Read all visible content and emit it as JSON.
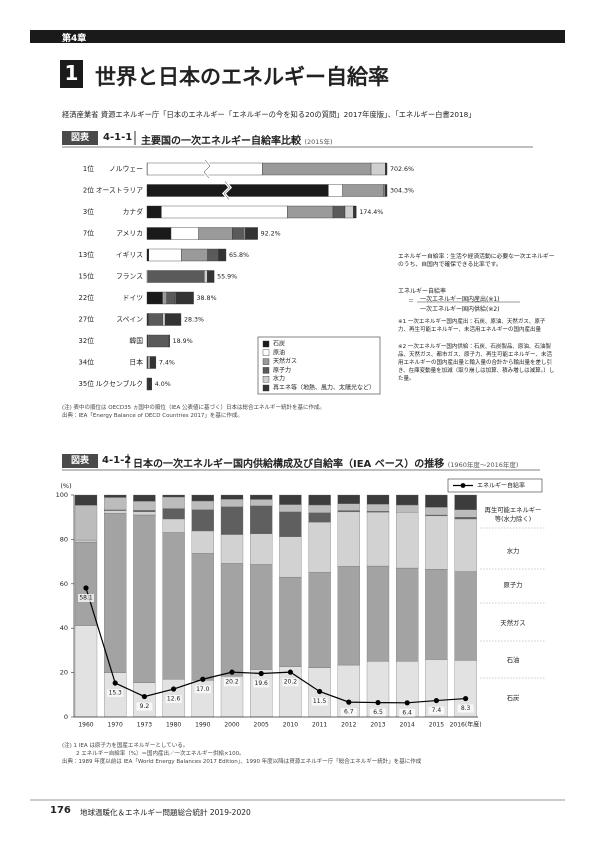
{
  "chapter": "第4章",
  "section_number": "1",
  "title": "世界と日本のエネルギー自給率",
  "source": "経済産業省 資源エネルギー庁「日本のエネルギー「エネルギーの今を知る20の質問」2017年度版」、「エネルギー白書2018」",
  "definition": {
    "intro": "エネルギー自給率：生活や経済活動に必要な一次エネルギーのうち、自国内で確保できる比率です。",
    "term": "エネルギー自給率",
    "equals": "＝",
    "numerator": "一次エネルギー国内産出(※1)",
    "denominator": "一次エネルギー国内供給(※2)",
    "notes": [
      "※1 一次エネルギー国内産出：石炭、原油、天然ガス、原子力、再生可能エネルギー、未活用エネルギーの国内産出量",
      "※2 一次エネルギー国内供給：石炭、石炭製品、原油、石油製品、天然ガス、都市ガス、原子力、再生可能エネルギー、未活用エネルギーの国内産出量と輸入量の合計から輸出量を差し引き、在庫変動量を加減（取り崩しは加算、積み増しは減算。）した量。"
    ]
  },
  "footer": {
    "page": "176",
    "text": "地球温暖化＆エネルギー問題総合統計 2019-2020"
  },
  "chart_data": [
    {
      "type": "bar",
      "orientation": "horizontal",
      "stacked": true,
      "label": "図表",
      "number": "4-1-1",
      "title": "主要国の一次エネルギー自給率比較",
      "subtitle": "(2015年)",
      "ranks": [
        "1位",
        "2位",
        "3位",
        "7位",
        "13位",
        "15位",
        "22位",
        "27位",
        "32位",
        "34位",
        "35位"
      ],
      "categories": [
        "ノルウェー",
        "オーストラリア",
        "カナダ",
        "アメリカ",
        "イギリス",
        "フランス",
        "ドイツ",
        "スペイン",
        "韓国",
        "日本",
        "ルクセンブルク"
      ],
      "values": [
        702.6,
        304.3,
        174.4,
        92.2,
        65.8,
        55.9,
        38.8,
        28.3,
        18.9,
        7.4,
        4.0
      ],
      "value_labels": [
        "702.6%",
        "304.3%",
        "174.4%",
        "92.2%",
        "65.8%",
        "55.9%",
        "38.8%",
        "28.3%",
        "18.9%",
        "7.4%",
        "4.0%"
      ],
      "series": [
        {
          "name": "石炭",
          "color": "#1a1a1a",
          "values": [
            0.9,
            230,
            12,
            20,
            1.5,
            0,
            13,
            0.8,
            0.6,
            0,
            0
          ]
        },
        {
          "name": "原油",
          "color": "#ffffff",
          "values": [
            337,
            18,
            105,
            23,
            27,
            0.7,
            1,
            0.3,
            0.7,
            0.1,
            0
          ]
        },
        {
          "name": "天然ガス",
          "color": "#9a9a9a",
          "values": [
            318,
            52,
            38,
            28,
            22,
            0,
            2.4,
            0,
            0.2,
            0.4,
            0
          ]
        },
        {
          "name": "原子力",
          "color": "#5a5a5a",
          "values": [
            0,
            0,
            10,
            10,
            9,
            47,
            7,
            12,
            16.8,
            0.4,
            0
          ]
        },
        {
          "name": "水力",
          "color": "#cfcfcf",
          "values": [
            42,
            1.5,
            7,
            1,
            0.3,
            2.6,
            0.7,
            2,
            0.2,
            1.6,
            0.1
          ]
        },
        {
          "name": "再エネ等（地熱、風力、太陽光など）",
          "color": "#333333",
          "values": [
            4.7,
            2.8,
            2.4,
            10.2,
            6,
            5.6,
            14.7,
            13.2,
            0.4,
            4.9,
            3.9
          ]
        }
      ],
      "notes": [
        "(注) 表中の順位は OECD35 ヵ国中の順位（IEA 公表値に基づく）日本は総合エネルギー統計を基に作成。",
        "出典：IEA「Energy Balance of OECD Countries 2017」を基に作成。"
      ]
    },
    {
      "type": "bar",
      "stacked": true,
      "label": "図表",
      "number": "4-1-2",
      "title": "日本の一次エネルギー国内供給構成及び自給率（IEA ベース）の推移",
      "subtitle": "(1960年度～2016年度)",
      "y_label": "(%)",
      "categories": [
        "1960",
        "1970",
        "1973",
        "1980",
        "1990",
        "2000",
        "2005",
        "2010",
        "2011",
        "2012",
        "2013",
        "2014",
        "2015",
        "2016(年度)"
      ],
      "ylim": [
        0,
        100
      ],
      "yticks": [
        0,
        20,
        40,
        60,
        80,
        100
      ],
      "series": [
        {
          "name": "石炭",
          "color": "#e2e2e2",
          "values": [
            41.2,
            19.9,
            15.5,
            17.0,
            16.6,
            18.4,
            21.4,
            22.7,
            22.2,
            23.4,
            25.1,
            25.1,
            25.9,
            25.5
          ]
        },
        {
          "name": "石油",
          "color": "#a3a3a3",
          "values": [
            37.6,
            71.9,
            75.5,
            66.1,
            57.1,
            50.8,
            47.3,
            40.3,
            43.0,
            44.5,
            42.9,
            42.0,
            40.7,
            40.0
          ]
        },
        {
          "name": "天然ガス",
          "color": "#d2d2d2",
          "values": [
            0.9,
            1.2,
            1.5,
            6.1,
            10.1,
            13.0,
            13.8,
            18.2,
            22.6,
            24.5,
            24.3,
            25.1,
            24.0,
            23.7
          ]
        },
        {
          "name": "原子力",
          "color": "#5f5f5f",
          "values": [
            0,
            0.3,
            0.6,
            4.7,
            9.6,
            12.5,
            12.6,
            11.2,
            4.2,
            0.6,
            0.4,
            0,
            0.4,
            0.8
          ]
        },
        {
          "name": "水力",
          "color": "#bcbcbc",
          "values": [
            15.7,
            5.6,
            4.1,
            5.2,
            3.9,
            3.4,
            2.9,
            3.3,
            3.5,
            3.1,
            3.2,
            3.3,
            3.5,
            3.4
          ]
        },
        {
          "name": "再生可能エネルギー等(水力除く)",
          "color": "#3c3c3c",
          "values": [
            4.6,
            1.1,
            2.8,
            0.9,
            2.7,
            1.9,
            2.0,
            4.3,
            4.5,
            3.9,
            4.1,
            4.5,
            5.5,
            6.6
          ]
        }
      ],
      "line": {
        "name": "エネルギー自給率",
        "color": "#000000",
        "values": [
          58.1,
          15.3,
          9.2,
          12.6,
          17.0,
          20.2,
          19.6,
          20.2,
          11.5,
          6.7,
          6.5,
          6.4,
          7.4,
          8.3
        ],
        "value_labels": [
          "58.1",
          "15.3",
          "9.2",
          "12.6",
          "17.0",
          "20.2",
          "19.6",
          "20.2",
          "11.5",
          "6.7",
          "6.5",
          "6.4",
          "7.4",
          "8.3"
        ]
      },
      "notes": [
        "(注) 1 IEA は原子力を国産エネルギーとしている。",
        "2 エネルギー自給率（%）＝国内産出／一次エネルギー供給×100。",
        "出典：1989 年度以前は IEA「World Energy Balances 2017 Edition」、1990 年度以降は資源エネルギー庁「総合エネルギー統計」を基に作成"
      ]
    }
  ]
}
